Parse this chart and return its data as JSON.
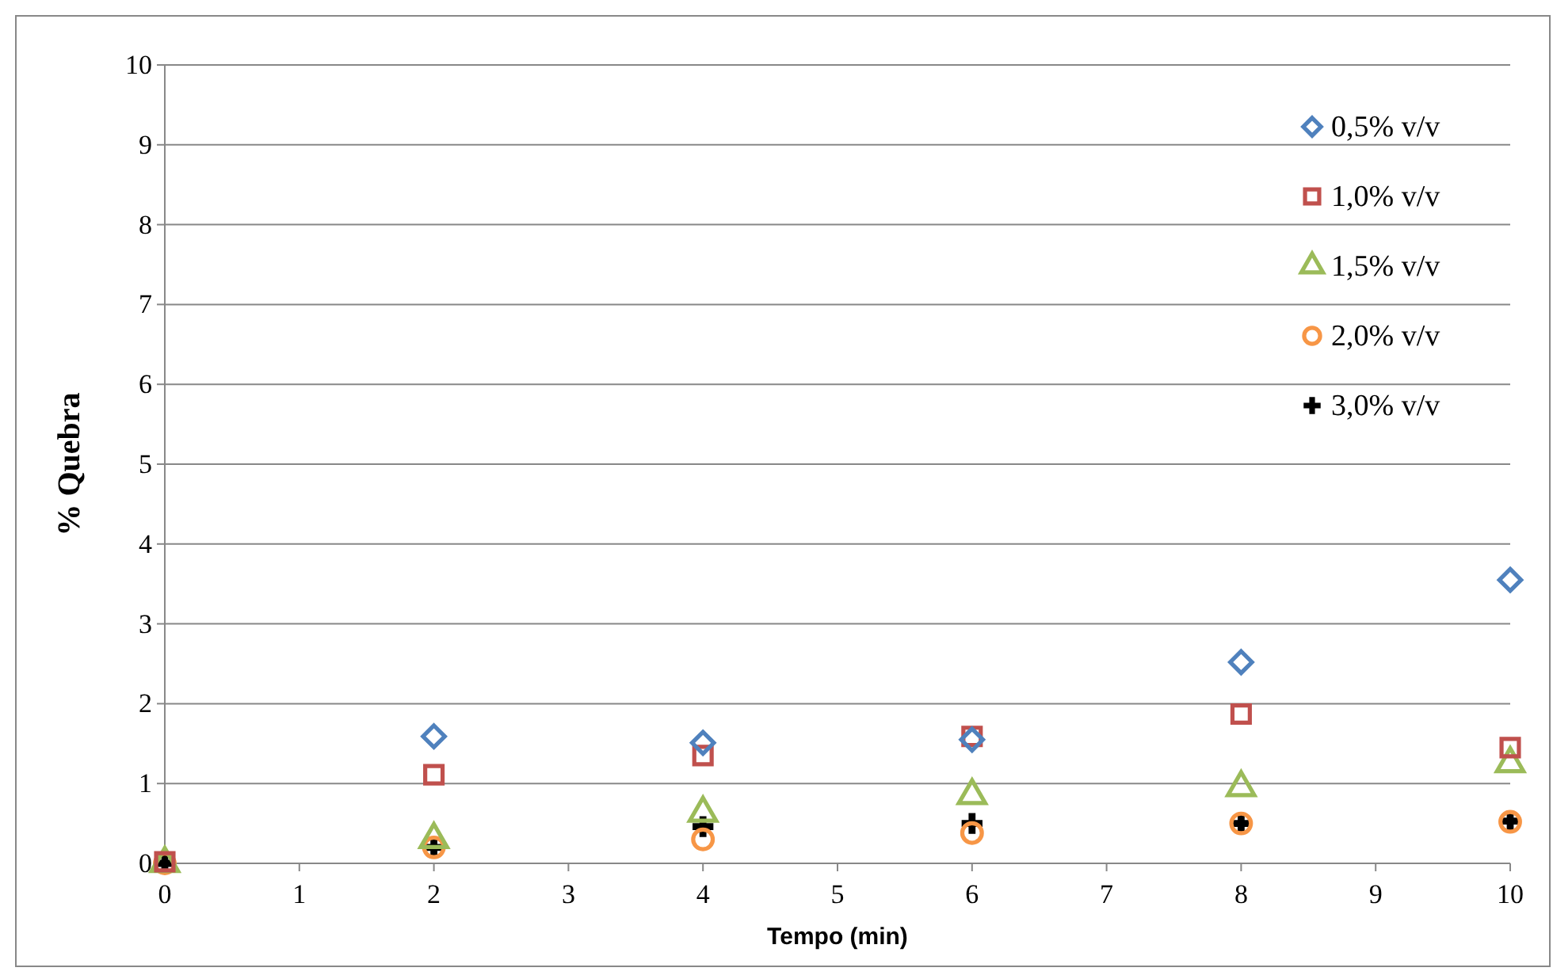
{
  "chart_data": {
    "type": "scatter",
    "xlabel": "Tempo (min)",
    "ylabel": "% Quebra",
    "x": [
      0,
      2,
      4,
      6,
      8,
      10
    ],
    "xlim": [
      0,
      10
    ],
    "xticks": [
      0,
      1,
      2,
      3,
      4,
      5,
      6,
      7,
      8,
      9,
      10
    ],
    "ylim": [
      0,
      10
    ],
    "yticks": [
      0,
      1,
      2,
      3,
      4,
      5,
      6,
      7,
      8,
      9,
      10
    ],
    "grid": "y",
    "legend": "top right",
    "series": [
      {
        "name": "0,5% v/v",
        "color": "#4f81bd",
        "marker": "diamond",
        "values": [
          null,
          1.59,
          1.51,
          1.55,
          2.52,
          3.55
        ]
      },
      {
        "name": "1,0% v/v",
        "color": "#c0504d",
        "marker": "square",
        "values": [
          0.02,
          1.11,
          1.35,
          1.59,
          1.87,
          1.45
        ]
      },
      {
        "name": "1,5% v/v",
        "color": "#9bbb59",
        "marker": "triangle",
        "values": [
          0,
          0.3,
          0.63,
          0.85,
          0.95,
          1.25
        ]
      },
      {
        "name": "2,0% v/v",
        "color": "#f79646",
        "marker": "circle",
        "values": [
          0,
          0.2,
          0.3,
          0.38,
          0.5,
          0.52
        ]
      },
      {
        "name": "3,0% v/v",
        "color": "#000000",
        "marker": "cross",
        "values": [
          0,
          0.2,
          0.46,
          0.5,
          0.5,
          0.53
        ]
      }
    ]
  }
}
